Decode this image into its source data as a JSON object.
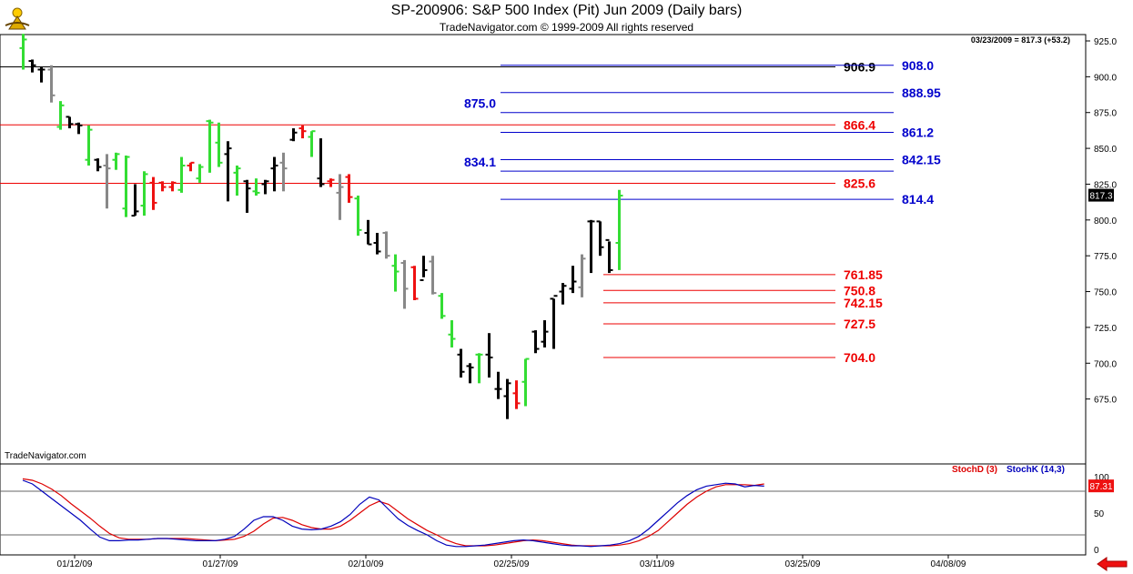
{
  "title": "SP-200906:  S&P 500 Index (Pit) Jun 2009  (Daily bars)",
  "subtitle": "TradeNavigator.com © 1999-2009 All rights reserved",
  "watermark": "TradeNavigator.com",
  "last_quote": "03/23/2009 = 817.3 (+53.2)",
  "last_price_tag": "817.3",
  "colors": {
    "up": "#33dd33",
    "down": "#ee1111",
    "neutral": "#888888",
    "bar": "#000000",
    "blue_level": "#0000cc",
    "red_level": "#ee0000",
    "stochD": "#dd0000",
    "stochK": "#0000bb"
  },
  "chart_data": {
    "type": "ohlc",
    "price_axis": {
      "min": 650,
      "max": 925,
      "ticks": [
        925,
        900,
        875,
        850,
        825,
        800,
        775,
        750,
        725,
        700,
        675
      ],
      "labels": [
        "925.0",
        "900.0",
        "875.0",
        "850.0",
        "825.0",
        "800.0",
        "775.0",
        "750.0",
        "725.0",
        "700.0",
        "675.0"
      ]
    },
    "date_labels": [
      "01/12/09",
      "01/27/09",
      "02/10/09",
      "02/25/09",
      "03/11/09",
      "03/25/09",
      "04/08/09"
    ],
    "bars": [
      {
        "o": 920,
        "h": 930,
        "l": 905,
        "c": 926,
        "k": "up"
      },
      {
        "o": 911,
        "h": 912,
        "l": 903,
        "c": 908,
        "k": "bar"
      },
      {
        "o": 905,
        "h": 907,
        "l": 896,
        "c": 905,
        "k": "bar"
      },
      {
        "o": 905,
        "h": 908,
        "l": 882,
        "c": 887,
        "k": "neutral"
      },
      {
        "o": 865,
        "h": 883,
        "l": 863,
        "c": 880,
        "k": "up"
      },
      {
        "o": 872,
        "h": 872,
        "l": 864,
        "c": 867,
        "k": "bar"
      },
      {
        "o": 867,
        "h": 868,
        "l": 860,
        "c": 866,
        "k": "bar"
      },
      {
        "o": 842,
        "h": 866,
        "l": 838,
        "c": 863,
        "k": "up"
      },
      {
        "o": 842,
        "h": 843,
        "l": 834,
        "c": 837,
        "k": "bar"
      },
      {
        "o": 838,
        "h": 846,
        "l": 808,
        "c": 836,
        "k": "neutral"
      },
      {
        "o": 842,
        "h": 847,
        "l": 835,
        "c": 846,
        "k": "up"
      },
      {
        "o": 808,
        "h": 845,
        "l": 802,
        "c": 844,
        "k": "up"
      },
      {
        "o": 803,
        "h": 825,
        "l": 803,
        "c": 806,
        "k": "bar"
      },
      {
        "o": 810,
        "h": 834,
        "l": 803,
        "c": 832,
        "k": "up"
      },
      {
        "o": 826,
        "h": 830,
        "l": 807,
        "c": 812,
        "k": "down"
      },
      {
        "o": 826,
        "h": 827,
        "l": 820,
        "c": 823,
        "k": "down"
      },
      {
        "o": 823,
        "h": 827,
        "l": 820,
        "c": 826,
        "k": "down"
      },
      {
        "o": 821,
        "h": 844,
        "l": 819,
        "c": 838,
        "k": "up"
      },
      {
        "o": 838,
        "h": 840,
        "l": 834,
        "c": 840,
        "k": "down"
      },
      {
        "o": 829,
        "h": 839,
        "l": 826,
        "c": 837,
        "k": "up"
      },
      {
        "o": 869,
        "h": 870,
        "l": 833,
        "c": 868,
        "k": "up"
      },
      {
        "o": 854,
        "h": 868,
        "l": 837,
        "c": 840,
        "k": "up"
      },
      {
        "o": 846,
        "h": 855,
        "l": 813,
        "c": 850,
        "k": "bar"
      },
      {
        "o": 833,
        "h": 838,
        "l": 817,
        "c": 836,
        "k": "up"
      },
      {
        "o": 827,
        "h": 828,
        "l": 805,
        "c": 822,
        "k": "bar"
      },
      {
        "o": 820,
        "h": 829,
        "l": 817,
        "c": 819,
        "k": "up"
      },
      {
        "o": 825,
        "h": 828,
        "l": 818,
        "c": 827,
        "k": "bar"
      },
      {
        "o": 836,
        "h": 844,
        "l": 820,
        "c": 838,
        "k": "bar"
      },
      {
        "o": 840,
        "h": 847,
        "l": 820,
        "c": 836,
        "k": "neutral"
      },
      {
        "o": 856,
        "h": 864,
        "l": 855,
        "c": 861,
        "k": "bar"
      },
      {
        "o": 864,
        "h": 866,
        "l": 857,
        "c": 862,
        "k": "down"
      },
      {
        "o": 858,
        "h": 862,
        "l": 844,
        "c": 862,
        "k": "up"
      },
      {
        "o": 829,
        "h": 857,
        "l": 823,
        "c": 825,
        "k": "bar"
      },
      {
        "o": 827,
        "h": 829,
        "l": 823,
        "c": 828,
        "k": "down"
      },
      {
        "o": 819,
        "h": 832,
        "l": 800,
        "c": 823,
        "k": "neutral"
      },
      {
        "o": 830,
        "h": 832,
        "l": 812,
        "c": 816,
        "k": "down"
      },
      {
        "o": 815,
        "h": 817,
        "l": 789,
        "c": 793,
        "k": "up"
      },
      {
        "o": 791,
        "h": 800,
        "l": 783,
        "c": 783,
        "k": "bar"
      },
      {
        "o": 784,
        "h": 791,
        "l": 776,
        "c": 778,
        "k": "bar"
      },
      {
        "o": 791,
        "h": 792,
        "l": 773,
        "c": 775,
        "k": "neutral"
      },
      {
        "o": 768,
        "h": 776,
        "l": 750,
        "c": 764,
        "k": "up"
      },
      {
        "o": 770,
        "h": 772,
        "l": 738,
        "c": 752,
        "k": "neutral"
      },
      {
        "o": 767,
        "h": 768,
        "l": 744,
        "c": 745,
        "k": "down"
      },
      {
        "o": 758,
        "h": 775,
        "l": 760,
        "c": 765,
        "k": "bar"
      },
      {
        "o": 771,
        "h": 775,
        "l": 748,
        "c": 749,
        "k": "neutral"
      },
      {
        "o": 747,
        "h": 749,
        "l": 731,
        "c": 733,
        "k": "up"
      },
      {
        "o": 720,
        "h": 730,
        "l": 711,
        "c": 717,
        "k": "up"
      },
      {
        "o": 706,
        "h": 710,
        "l": 690,
        "c": 694,
        "k": "bar"
      },
      {
        "o": 698,
        "h": 700,
        "l": 686,
        "c": 697,
        "k": "bar"
      },
      {
        "o": 706,
        "h": 707,
        "l": 686,
        "c": 706,
        "k": "up"
      },
      {
        "o": 706,
        "h": 721,
        "l": 690,
        "c": 704,
        "k": "bar"
      },
      {
        "o": 682,
        "h": 694,
        "l": 675,
        "c": 682,
        "k": "bar"
      },
      {
        "o": 677,
        "h": 689,
        "l": 661,
        "c": 686,
        "k": "bar"
      },
      {
        "o": 679,
        "h": 688,
        "l": 668,
        "c": 672,
        "k": "down"
      },
      {
        "o": 687,
        "h": 703,
        "l": 670,
        "c": 703,
        "k": "up"
      },
      {
        "o": 722,
        "h": 723,
        "l": 707,
        "c": 710,
        "k": "bar"
      },
      {
        "o": 715,
        "h": 730,
        "l": 711,
        "c": 722,
        "k": "bar"
      },
      {
        "o": 745,
        "h": 745,
        "l": 710,
        "c": 747,
        "k": "bar"
      },
      {
        "o": 750,
        "h": 756,
        "l": 741,
        "c": 754,
        "k": "bar"
      },
      {
        "o": 752,
        "h": 768,
        "l": 749,
        "c": 757,
        "k": "bar"
      },
      {
        "o": 753,
        "h": 776,
        "l": 746,
        "c": 773,
        "k": "neutral"
      },
      {
        "o": 799,
        "h": 800,
        "l": 763,
        "c": 799,
        "k": "bar"
      },
      {
        "o": 799,
        "h": 799,
        "l": 775,
        "c": 781,
        "k": "bar"
      },
      {
        "o": 786,
        "h": 785,
        "l": 763,
        "c": 765,
        "k": "bar"
      },
      {
        "o": 784,
        "h": 821,
        "l": 765,
        "c": 817,
        "k": "up"
      }
    ],
    "levels": [
      {
        "value": 906.9,
        "label": "906.9",
        "color": "#000000",
        "x1": 0,
        "x2": 918
      },
      {
        "value": 908.0,
        "label": "908.0",
        "color": "#0000cc",
        "x1": 550,
        "x2": 982
      },
      {
        "value": 888.95,
        "label": "888.95",
        "color": "#0000cc",
        "x1": 550,
        "x2": 982
      },
      {
        "value": 875.0,
        "label": "875.0",
        "color": "#0000cc",
        "x1": 550,
        "x2": 982,
        "labelLeft": true
      },
      {
        "value": 866.4,
        "label": "866.4",
        "color": "#ee0000",
        "x1": 0,
        "x2": 918
      },
      {
        "value": 861.2,
        "label": "861.2",
        "color": "#0000cc",
        "x1": 550,
        "x2": 982
      },
      {
        "value": 842.15,
        "label": "842.15",
        "color": "#0000cc",
        "x1": 550,
        "x2": 982
      },
      {
        "value": 834.1,
        "label": "834.1",
        "color": "#0000cc",
        "x1": 550,
        "x2": 982,
        "labelLeft": true
      },
      {
        "value": 825.6,
        "label": "825.6",
        "color": "#ee0000",
        "x1": 0,
        "x2": 918
      },
      {
        "value": 814.4,
        "label": "814.4",
        "color": "#0000cc",
        "x1": 550,
        "x2": 982
      },
      {
        "value": 761.85,
        "label": "761.85",
        "color": "#ee0000",
        "x1": 663,
        "x2": 918
      },
      {
        "value": 750.8,
        "label": "750.8",
        "color": "#ee0000",
        "x1": 663,
        "x2": 918
      },
      {
        "value": 742.15,
        "label": "742.15",
        "color": "#ee0000",
        "x1": 663,
        "x2": 918
      },
      {
        "value": 727.5,
        "label": "727.5",
        "color": "#ee0000",
        "x1": 663,
        "x2": 918
      },
      {
        "value": 704.0,
        "label": "704.0",
        "color": "#ee0000",
        "x1": 663,
        "x2": 918
      }
    ],
    "stochastic": {
      "label_d": "StochD (3)",
      "label_k": "StochK (14,3)",
      "last_value": "87.31",
      "ylim": [
        0,
        100
      ],
      "ticks": [
        100,
        50,
        0
      ],
      "tick_labels": [
        "100",
        "50",
        "0"
      ],
      "guide_lines": [
        80,
        20
      ],
      "stochK": [
        95,
        90,
        80,
        70,
        60,
        50,
        40,
        28,
        17,
        12,
        12,
        13,
        13,
        14,
        15,
        15,
        14,
        13,
        12,
        12,
        12,
        14,
        18,
        28,
        40,
        45,
        45,
        40,
        32,
        28,
        27,
        28,
        32,
        38,
        48,
        62,
        72,
        68,
        55,
        42,
        33,
        26,
        20,
        12,
        6,
        4,
        4,
        5,
        6,
        8,
        10,
        12,
        13,
        12,
        10,
        8,
        6,
        5,
        5,
        4,
        5,
        6,
        8,
        12,
        18,
        28,
        40,
        52,
        64,
        74,
        82,
        87,
        89,
        91,
        90,
        86,
        88,
        87
      ],
      "stochD": [
        97,
        95,
        90,
        83,
        74,
        63,
        53,
        43,
        32,
        22,
        16,
        14,
        14,
        14,
        15,
        15,
        15,
        15,
        14,
        13,
        12,
        13,
        14,
        18,
        25,
        35,
        43,
        44,
        40,
        34,
        30,
        28,
        28,
        32,
        40,
        50,
        60,
        66,
        62,
        52,
        42,
        34,
        26,
        20,
        13,
        8,
        5,
        5,
        5,
        6,
        8,
        10,
        12,
        13,
        12,
        10,
        8,
        6,
        5,
        5,
        5,
        5,
        6,
        8,
        12,
        18,
        26,
        38,
        50,
        62,
        72,
        80,
        86,
        89,
        89,
        89,
        88,
        90
      ]
    }
  }
}
